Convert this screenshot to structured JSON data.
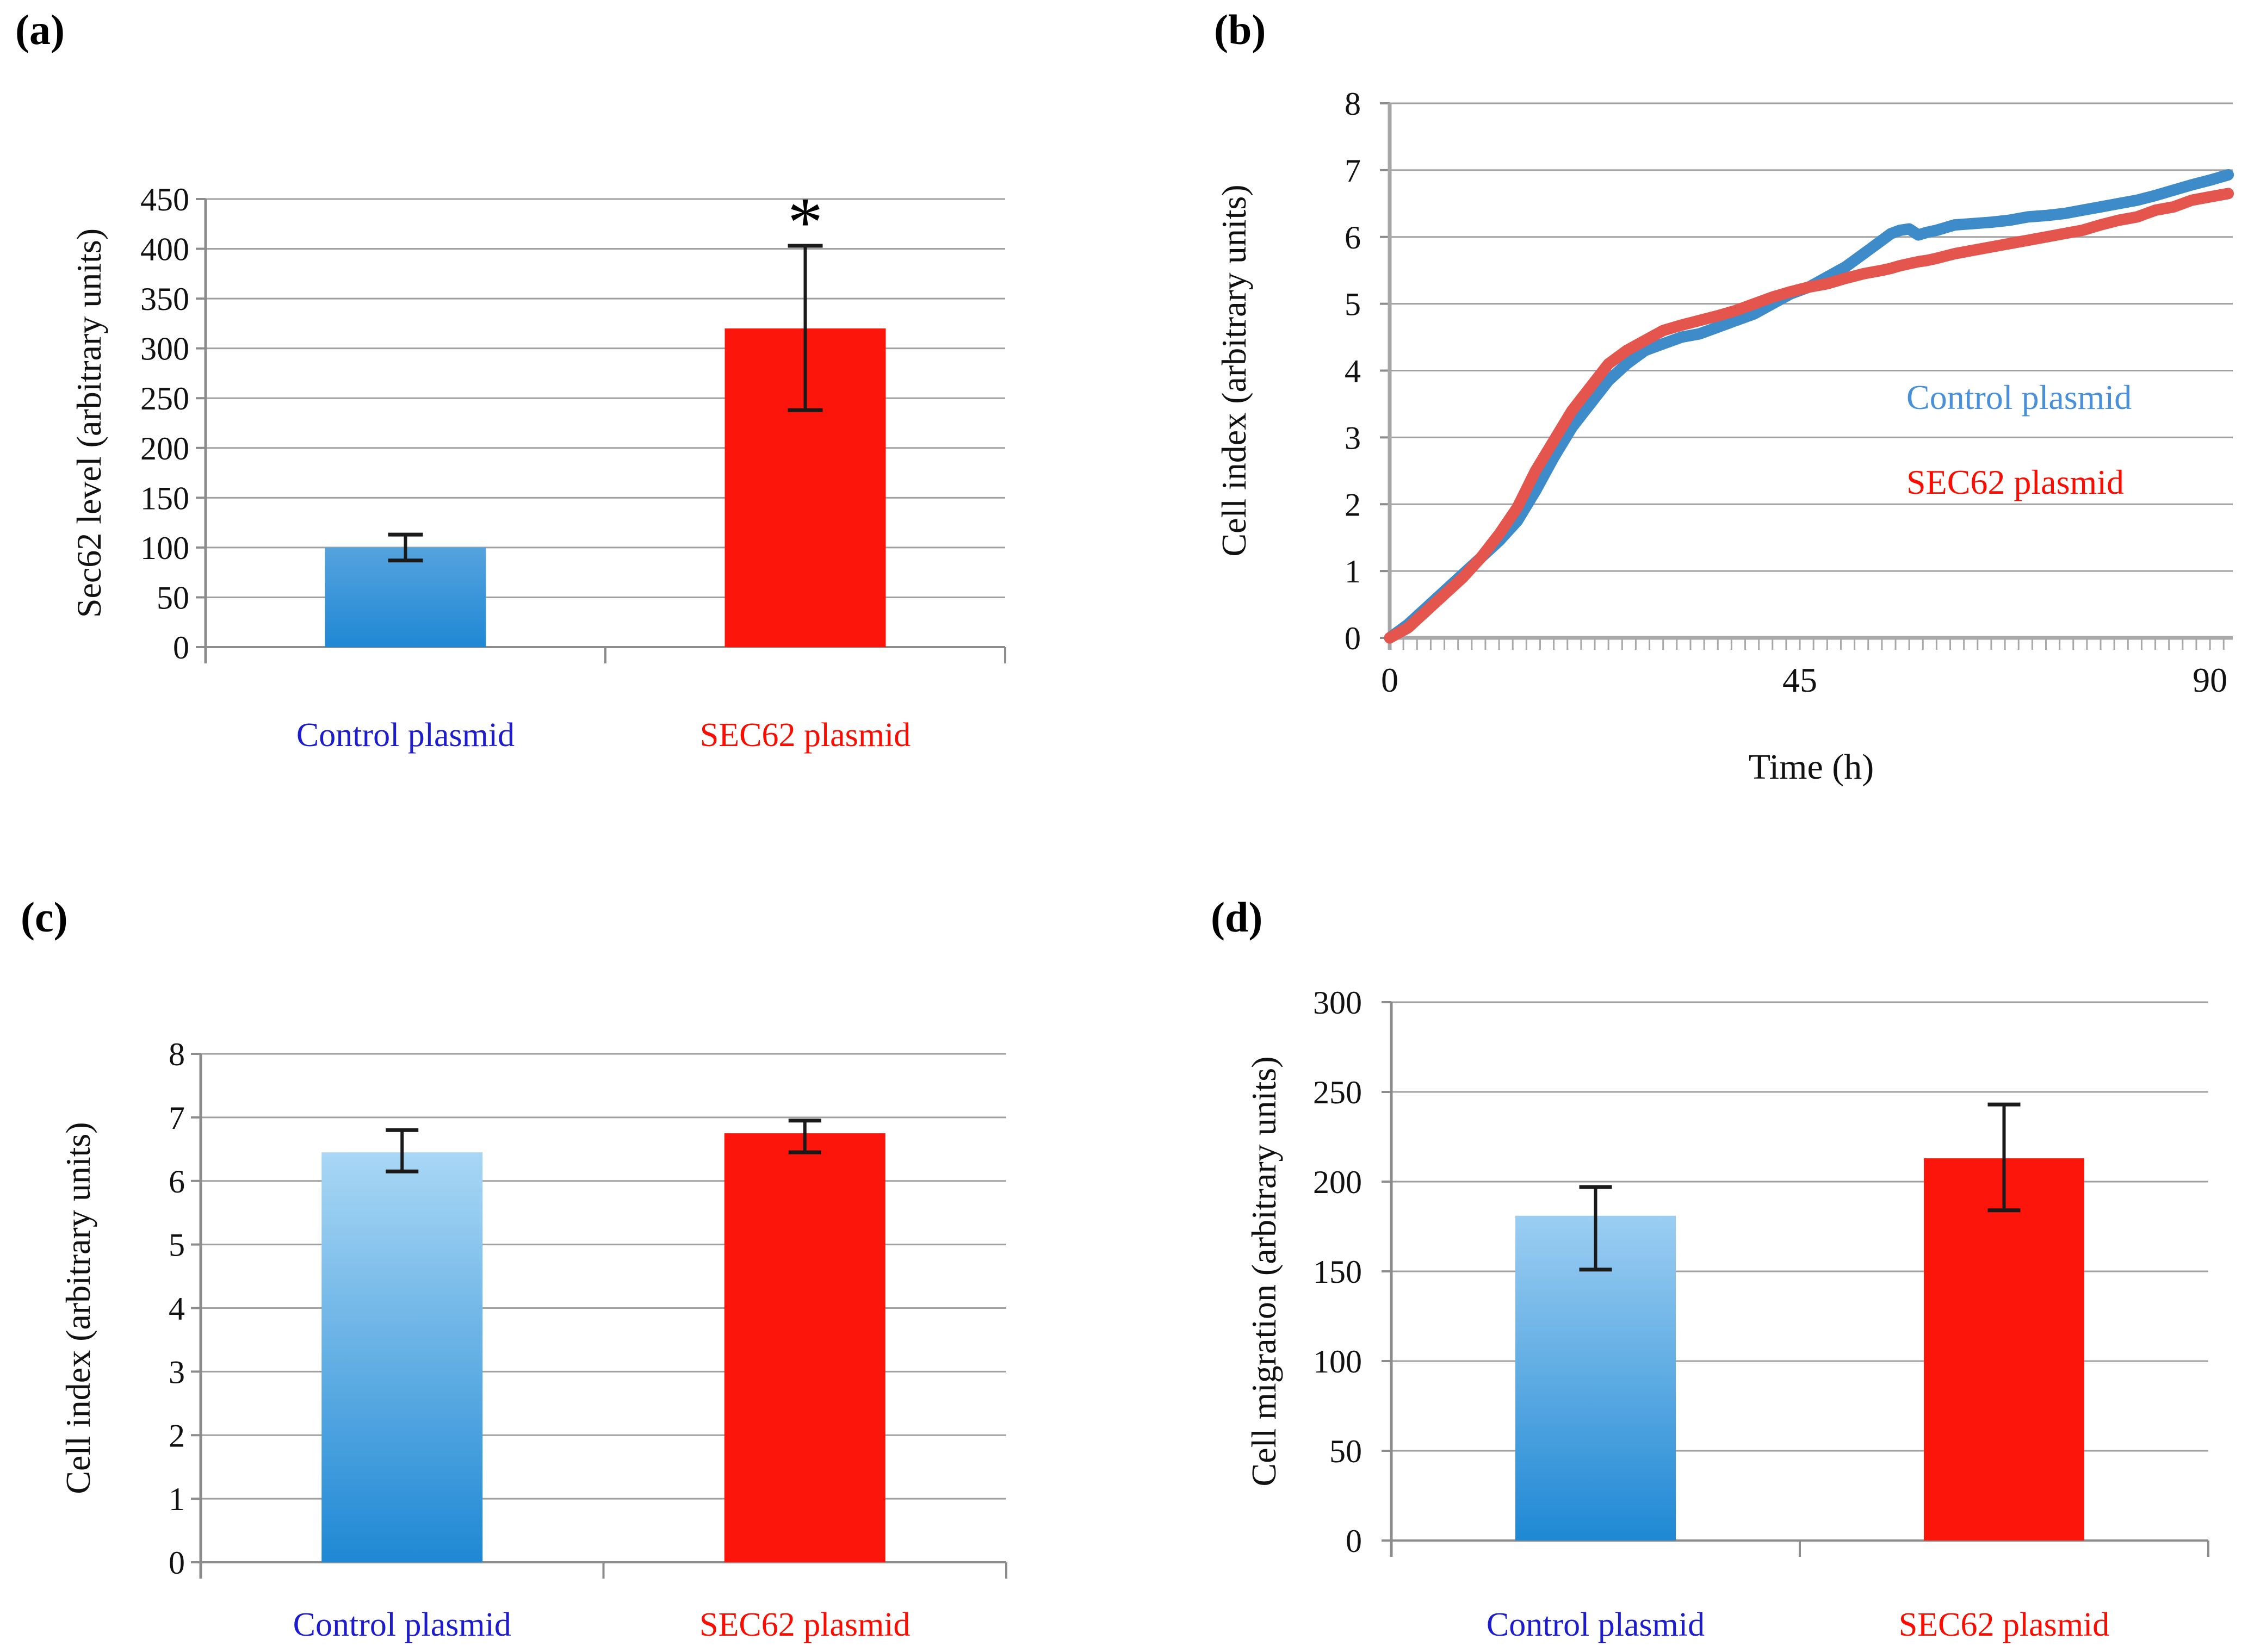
{
  "figure": {
    "background": "#ffffff",
    "panels": [
      {
        "label": "(a)"
      },
      {
        "label": "(b)"
      },
      {
        "label": "(c)"
      },
      {
        "label": "(d)"
      }
    ]
  },
  "colors": {
    "blue_bar_bottom": "#1f88d4",
    "red_bar": "#fb150a",
    "category_blue": "#1c1cce",
    "category_red": "#fe0b00",
    "gridline": "#a0a0a0",
    "axis": "#8c8c8c",
    "error_bar": "#1a1a1a",
    "text": "#111111",
    "line_blue": "#3d8bc9",
    "line_red": "#e4564d",
    "legend_blue": "#4a90d8",
    "legend_red": "#fe0b00"
  },
  "chart_data": [
    {
      "panel": "a",
      "type": "bar",
      "ylabel": "Sec62 level (arbitrary units)",
      "xlabel": "",
      "ylim": [
        0,
        450
      ],
      "ytick_step": 50,
      "grid": true,
      "categories": [
        "Control plasmid",
        "SEC62 plasmid"
      ],
      "category_colors": [
        "#1c1cce",
        "#fe0b00"
      ],
      "values": [
        100,
        320
      ],
      "error_low": [
        87,
        238
      ],
      "error_high": [
        113,
        403
      ],
      "significance": [
        "",
        "*"
      ],
      "bar_fills": [
        "blue_gradient",
        "red_solid"
      ],
      "blue_gradient_top": "#55a3de"
    },
    {
      "panel": "b",
      "type": "line",
      "ylabel": "Cell index (arbitrary units)",
      "xlabel": "Time (h)",
      "ylim": [
        0,
        8
      ],
      "ytick_step": 1,
      "xlim": [
        0,
        92.5
      ],
      "xticks": [
        0,
        45,
        90
      ],
      "x_minor_tick_step": 1.5,
      "grid": true,
      "legend": {
        "position": "inside-right",
        "entries": [
          {
            "text": "Control plasmid",
            "color": "#4a90d8"
          },
          {
            "text": "SEC62 plasmid",
            "color": "#fe0b00"
          }
        ]
      },
      "series": [
        {
          "name": "Control plasmid",
          "color": "#3d8bc9",
          "x": [
            0,
            2,
            4,
            6,
            8,
            10,
            12,
            14,
            16,
            18,
            20,
            22,
            24,
            26,
            28,
            30,
            32,
            34,
            36,
            38,
            40,
            42,
            44,
            46,
            48,
            50,
            52,
            54,
            55,
            56,
            57,
            58,
            59,
            60,
            62,
            64,
            66,
            68,
            70,
            72,
            74,
            76,
            78,
            80,
            82,
            84,
            86,
            88,
            90,
            92
          ],
          "y": [
            0,
            0.2,
            0.45,
            0.7,
            0.95,
            1.2,
            1.45,
            1.75,
            2.2,
            2.7,
            3.15,
            3.5,
            3.85,
            4.1,
            4.3,
            4.4,
            4.5,
            4.55,
            4.65,
            4.75,
            4.85,
            5.0,
            5.15,
            5.25,
            5.4,
            5.55,
            5.75,
            5.95,
            6.05,
            6.1,
            6.12,
            6.03,
            6.07,
            6.1,
            6.18,
            6.2,
            6.22,
            6.25,
            6.3,
            6.32,
            6.35,
            6.4,
            6.45,
            6.5,
            6.55,
            6.62,
            6.7,
            6.78,
            6.85,
            6.93
          ]
        },
        {
          "name": "SEC62 plasmid",
          "color": "#e4564d",
          "x": [
            0,
            2,
            4,
            6,
            8,
            10,
            12,
            14,
            16,
            18,
            20,
            22,
            24,
            26,
            28,
            30,
            32,
            34,
            36,
            38,
            40,
            42,
            44,
            46,
            48,
            50,
            52,
            54,
            55,
            56,
            57,
            58,
            59,
            60,
            62,
            64,
            66,
            68,
            70,
            72,
            74,
            76,
            78,
            80,
            82,
            84,
            86,
            88,
            90,
            92
          ],
          "y": [
            0,
            0.15,
            0.4,
            0.65,
            0.9,
            1.2,
            1.55,
            1.95,
            2.5,
            2.95,
            3.4,
            3.75,
            4.1,
            4.3,
            4.45,
            4.6,
            4.68,
            4.75,
            4.82,
            4.9,
            5.0,
            5.1,
            5.18,
            5.25,
            5.3,
            5.38,
            5.45,
            5.5,
            5.53,
            5.57,
            5.6,
            5.63,
            5.65,
            5.68,
            5.75,
            5.8,
            5.85,
            5.9,
            5.95,
            6.0,
            6.05,
            6.1,
            6.18,
            6.25,
            6.3,
            6.4,
            6.45,
            6.55,
            6.6,
            6.65
          ]
        }
      ]
    },
    {
      "panel": "c",
      "type": "bar",
      "ylabel": "Cell index (arbitrary units)",
      "xlabel": "",
      "ylim": [
        0,
        8
      ],
      "ytick_step": 1,
      "grid": true,
      "categories": [
        "Control plasmid",
        "SEC62 plasmid"
      ],
      "category_colors": [
        "#1c1cce",
        "#fe0b00"
      ],
      "values": [
        6.45,
        6.75
      ],
      "error_low": [
        6.15,
        6.45
      ],
      "error_high": [
        6.8,
        6.95
      ],
      "significance": [
        "",
        ""
      ],
      "bar_fills": [
        "blue_gradient",
        "red_solid"
      ],
      "blue_gradient_top": "#a9d7f5"
    },
    {
      "panel": "d",
      "type": "bar",
      "ylabel": "Cell migration (arbitrary units)",
      "xlabel": "",
      "ylim": [
        0,
        300
      ],
      "ytick_step": 50,
      "grid": true,
      "categories": [
        "Control plasmid",
        "SEC62 plasmid"
      ],
      "category_colors": [
        "#1c1cce",
        "#fe0b00"
      ],
      "values": [
        181,
        213
      ],
      "error_low": [
        151,
        184
      ],
      "error_high": [
        197,
        243
      ],
      "significance": [
        "",
        ""
      ],
      "bar_fills": [
        "blue_gradient",
        "red_solid"
      ],
      "blue_gradient_top": "#9ccef2"
    }
  ]
}
